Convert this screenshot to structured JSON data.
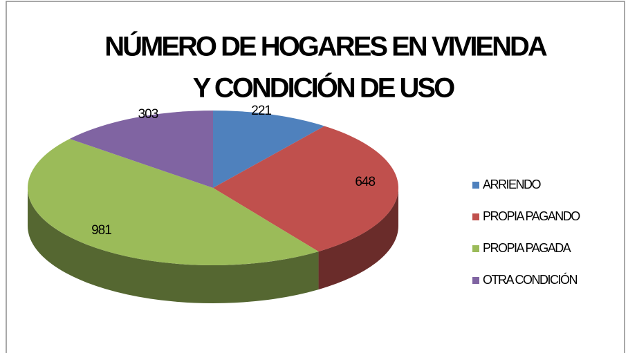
{
  "chart_data": {
    "type": "pie",
    "title": [
      "NÚMERO DE HOGARES EN VIVIENDA",
      "Y CONDICIÓN DE USO"
    ],
    "categories": [
      "ARRIENDO",
      "PROPIA PAGANDO",
      "PROPIA PAGADA",
      "OTRA CONDICIÓN"
    ],
    "values": [
      221,
      648,
      981,
      303
    ],
    "colors": [
      "#4f81bd",
      "#c0504d",
      "#9bbb59",
      "#8064a2"
    ],
    "legend": "right"
  }
}
